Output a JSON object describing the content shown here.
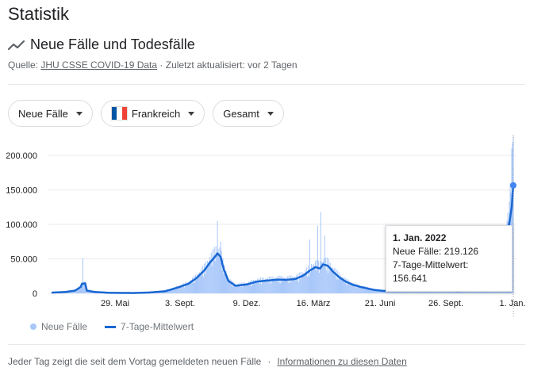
{
  "page": {
    "title": "Statistik",
    "subtitle": "Neue Fälle und Todesfälle",
    "source_prefix": "Quelle: ",
    "source_link": "JHU CSSE COVID-19 Data",
    "source_suffix": " · Zuletzt aktualisiert: vor 2 Tagen",
    "icons": {
      "trend": "trending-line-icon",
      "dropdown": "caret-down-icon",
      "flag": "france-flag-icon"
    }
  },
  "filters": [
    {
      "label": "Neue Fälle"
    },
    {
      "label": "Frankreich",
      "flag_colors": [
        "#0055a4",
        "#ffffff",
        "#ef4135"
      ]
    },
    {
      "label": "Gesamt"
    }
  ],
  "colors": {
    "bars": "#a8c7fa",
    "average_line": "#1967d2",
    "marker": "#4285f4"
  },
  "chart_data": {
    "type": "bar",
    "title": "",
    "xlabel": "",
    "ylabel": "",
    "ylim": [
      0,
      230000
    ],
    "y_ticks": [
      0,
      50000,
      100000,
      150000,
      200000
    ],
    "y_tick_labels": [
      "0",
      "50.000",
      "100.000",
      "150.000",
      "200.000"
    ],
    "x_tick_labels": [
      "29. Mai",
      "3. Sept.",
      "9. Dez.",
      "16. März",
      "21. Juni",
      "26. Sept.",
      "1. Jan."
    ],
    "series": [
      {
        "name": "Neue Fälle",
        "type": "bar"
      },
      {
        "name": "7-Tage-Mittelwert",
        "type": "line"
      }
    ],
    "average_points": [
      [
        0,
        1000
      ],
      [
        18,
        2000
      ],
      [
        30,
        4000
      ],
      [
        37,
        9000
      ],
      [
        39,
        14000
      ],
      [
        43,
        14500
      ],
      [
        45,
        4000
      ],
      [
        55,
        2000
      ],
      [
        75,
        700
      ],
      [
        105,
        500
      ],
      [
        125,
        1200
      ],
      [
        145,
        3000
      ],
      [
        160,
        8000
      ],
      [
        175,
        14000
      ],
      [
        185,
        22000
      ],
      [
        195,
        33000
      ],
      [
        202,
        44000
      ],
      [
        208,
        52000
      ],
      [
        212,
        58000
      ],
      [
        216,
        53000
      ],
      [
        220,
        35000
      ],
      [
        226,
        18000
      ],
      [
        235,
        11000
      ],
      [
        250,
        13000
      ],
      [
        262,
        17000
      ],
      [
        275,
        18500
      ],
      [
        290,
        20000
      ],
      [
        300,
        19500
      ],
      [
        312,
        21000
      ],
      [
        322,
        26000
      ],
      [
        330,
        33000
      ],
      [
        337,
        38000
      ],
      [
        343,
        36000
      ],
      [
        347,
        42000
      ],
      [
        353,
        40000
      ],
      [
        360,
        31000
      ],
      [
        368,
        23000
      ],
      [
        376,
        17000
      ],
      [
        386,
        12000
      ],
      [
        396,
        9000
      ],
      [
        412,
        5000
      ],
      [
        425,
        3500
      ],
      [
        434,
        4500
      ],
      [
        440,
        7000
      ],
      [
        446,
        14000
      ],
      [
        451,
        20000
      ],
      [
        457,
        22000
      ],
      [
        463,
        20000
      ],
      [
        470,
        20000
      ],
      [
        478,
        16000
      ],
      [
        485,
        13000
      ],
      [
        492,
        8000
      ],
      [
        500,
        5000
      ],
      [
        510,
        4000
      ],
      [
        520,
        3500
      ],
      [
        530,
        4500
      ],
      [
        540,
        6000
      ],
      [
        550,
        12000
      ],
      [
        556,
        20000
      ],
      [
        562,
        30000
      ],
      [
        568,
        40000
      ],
      [
        574,
        58000
      ],
      [
        580,
        72000
      ],
      [
        584,
        96000
      ],
      [
        588,
        125000
      ],
      [
        590,
        156641
      ]
    ],
    "bar_spikes": [
      [
        40,
        51000
      ],
      [
        207,
        55000
      ],
      [
        212,
        105000
      ],
      [
        216,
        75000
      ],
      [
        330,
        78000
      ],
      [
        340,
        98000
      ],
      [
        344,
        118000
      ],
      [
        349,
        84000
      ],
      [
        582,
        105000
      ],
      [
        586,
        160000
      ],
      [
        588,
        210000
      ],
      [
        589,
        219126
      ],
      [
        590,
        228000
      ]
    ],
    "highlight_index": 589
  },
  "tooltip": {
    "date": "1. Jan. 2022",
    "new_cases_label": "Neue Fälle: 219.126",
    "average_label": "7-Tage-Mittelwert: 156.641"
  },
  "legend": {
    "cases": "Neue Fälle",
    "average": "7-Tage-Mittelwert"
  },
  "footer": {
    "note": "Jeder Tag zeigt die seit dem Vortag gemeldeten neuen Fälle",
    "separator": "·",
    "link": "Informationen zu diesen Daten"
  }
}
